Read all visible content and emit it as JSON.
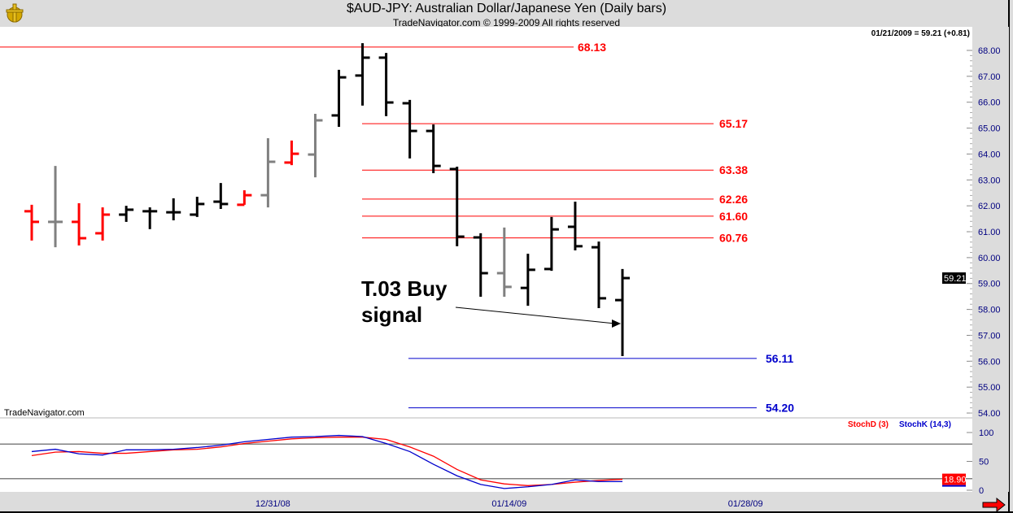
{
  "header": {
    "title": "$AUD-JPY:  Australian Dollar/Japanese Yen  (Daily bars)",
    "subtitle": "TradeNavigator.com © 1999-2009 All rights reserved",
    "last_quote": "01/21/2009 = 59.21 (+0.81)",
    "watermark": "TradeNavigator.com"
  },
  "colors": {
    "up": "#000000",
    "down": "#ff0000",
    "neutral": "#808080",
    "stochD": "#ff0000",
    "stochK": "#0000cc",
    "axis_text": "#000080"
  },
  "annotation": {
    "line1": "T.03 Buy",
    "line2": "signal"
  },
  "chart_data": [
    {
      "type": "ohlc",
      "title": "$AUD-JPY Daily bars",
      "ylim": [
        54,
        68
      ],
      "yticks": [
        "68.00",
        "67.00",
        "66.00",
        "65.00",
        "64.00",
        "63.00",
        "62.00",
        "61.00",
        "60.00",
        "59.00",
        "58.00",
        "57.00",
        "56.00",
        "55.00",
        "54.00"
      ],
      "last_price_label": "59.21",
      "xtick_labels": [
        {
          "index": 10,
          "label": "12/31/08"
        },
        {
          "index": 20,
          "label": "01/14/09"
        },
        {
          "index": 30,
          "label": "01/28/09"
        }
      ],
      "bars": [
        {
          "o": 61.79,
          "h": 62.04,
          "l": 60.66,
          "c": 61.38,
          "color": "down"
        },
        {
          "o": 61.38,
          "h": 63.54,
          "l": 60.4,
          "c": 61.38,
          "color": "neutral"
        },
        {
          "o": 61.38,
          "h": 62.1,
          "l": 60.47,
          "c": 60.75,
          "color": "down"
        },
        {
          "o": 60.94,
          "h": 61.94,
          "l": 60.66,
          "c": 61.66,
          "color": "down"
        },
        {
          "o": 61.66,
          "h": 62.0,
          "l": 61.38,
          "c": 61.85,
          "color": "up"
        },
        {
          "o": 61.79,
          "h": 61.94,
          "l": 61.1,
          "c": 61.79,
          "color": "up"
        },
        {
          "o": 61.75,
          "h": 62.29,
          "l": 61.44,
          "c": 61.75,
          "color": "up"
        },
        {
          "o": 61.66,
          "h": 62.35,
          "l": 61.57,
          "c": 62.07,
          "color": "up"
        },
        {
          "o": 62.16,
          "h": 62.88,
          "l": 61.88,
          "c": 62.07,
          "color": "up"
        },
        {
          "o": 62.04,
          "h": 62.6,
          "l": 62.04,
          "c": 62.41,
          "color": "down"
        },
        {
          "o": 62.41,
          "h": 64.61,
          "l": 61.94,
          "c": 63.7,
          "color": "neutral"
        },
        {
          "o": 63.67,
          "h": 64.52,
          "l": 63.57,
          "c": 64.01,
          "color": "down"
        },
        {
          "o": 63.98,
          "h": 65.55,
          "l": 63.1,
          "c": 65.3,
          "color": "neutral"
        },
        {
          "o": 65.49,
          "h": 67.25,
          "l": 65.05,
          "c": 66.96,
          "color": "up"
        },
        {
          "o": 67.03,
          "h": 68.28,
          "l": 65.87,
          "c": 67.72,
          "color": "up"
        },
        {
          "o": 67.72,
          "h": 67.9,
          "l": 65.46,
          "c": 65.99,
          "color": "up"
        },
        {
          "o": 65.96,
          "h": 66.09,
          "l": 63.83,
          "c": 64.89,
          "color": "up"
        },
        {
          "o": 64.89,
          "h": 65.14,
          "l": 63.26,
          "c": 63.54,
          "color": "up"
        },
        {
          "o": 63.42,
          "h": 63.51,
          "l": 60.44,
          "c": 60.81,
          "color": "up"
        },
        {
          "o": 60.78,
          "h": 60.94,
          "l": 58.49,
          "c": 59.4,
          "color": "up"
        },
        {
          "o": 59.4,
          "h": 61.16,
          "l": 58.49,
          "c": 58.87,
          "color": "neutral"
        },
        {
          "o": 58.83,
          "h": 60.15,
          "l": 58.14,
          "c": 59.53,
          "color": "up"
        },
        {
          "o": 59.56,
          "h": 61.57,
          "l": 59.49,
          "c": 61.09,
          "color": "up"
        },
        {
          "o": 61.19,
          "h": 62.16,
          "l": 60.28,
          "c": 60.44,
          "color": "up"
        },
        {
          "o": 60.4,
          "h": 60.62,
          "l": 58.05,
          "c": 58.43,
          "color": "up"
        },
        {
          "o": 58.36,
          "h": 59.56,
          "l": 56.2,
          "c": 59.21,
          "color": "up"
        }
      ],
      "levels": [
        {
          "value": 68.13,
          "label": "68.13",
          "color": "#ff0000"
        },
        {
          "value": 65.17,
          "label": "65.17",
          "color": "#ff0000"
        },
        {
          "value": 63.38,
          "label": "63.38",
          "color": "#ff0000"
        },
        {
          "value": 62.26,
          "label": "62.26",
          "color": "#ff0000"
        },
        {
          "value": 61.6,
          "label": "61.60",
          "color": "#ff0000"
        },
        {
          "value": 60.76,
          "label": "60.76",
          "color": "#ff0000"
        },
        {
          "value": 56.11,
          "label": "56.11",
          "color": "#0000cc"
        },
        {
          "value": 54.2,
          "label": "54.20",
          "color": "#0000cc"
        }
      ]
    },
    {
      "type": "line",
      "title": "Stochastic",
      "ylim": [
        0,
        100
      ],
      "yticks": [
        "100",
        "50",
        "0"
      ],
      "reference_lines": [
        80,
        20
      ],
      "last_value_label": "18.90",
      "series": [
        {
          "name": "StochD (3)",
          "color": "#ff0000",
          "values": [
            60,
            66,
            67,
            64,
            64,
            67,
            70,
            71,
            75,
            81,
            85,
            89,
            91,
            92,
            92,
            88,
            75,
            59,
            36,
            18,
            11,
            8,
            10,
            14,
            17,
            18.9
          ]
        },
        {
          "name": "StochK (14,3)",
          "color": "#0000cc",
          "values": [
            67,
            71,
            63,
            61,
            70,
            70,
            71,
            74,
            78,
            84,
            88,
            92,
            93,
            95,
            93,
            81,
            67,
            45,
            25,
            10,
            3,
            6,
            10,
            18,
            15,
            15
          ]
        }
      ]
    }
  ]
}
